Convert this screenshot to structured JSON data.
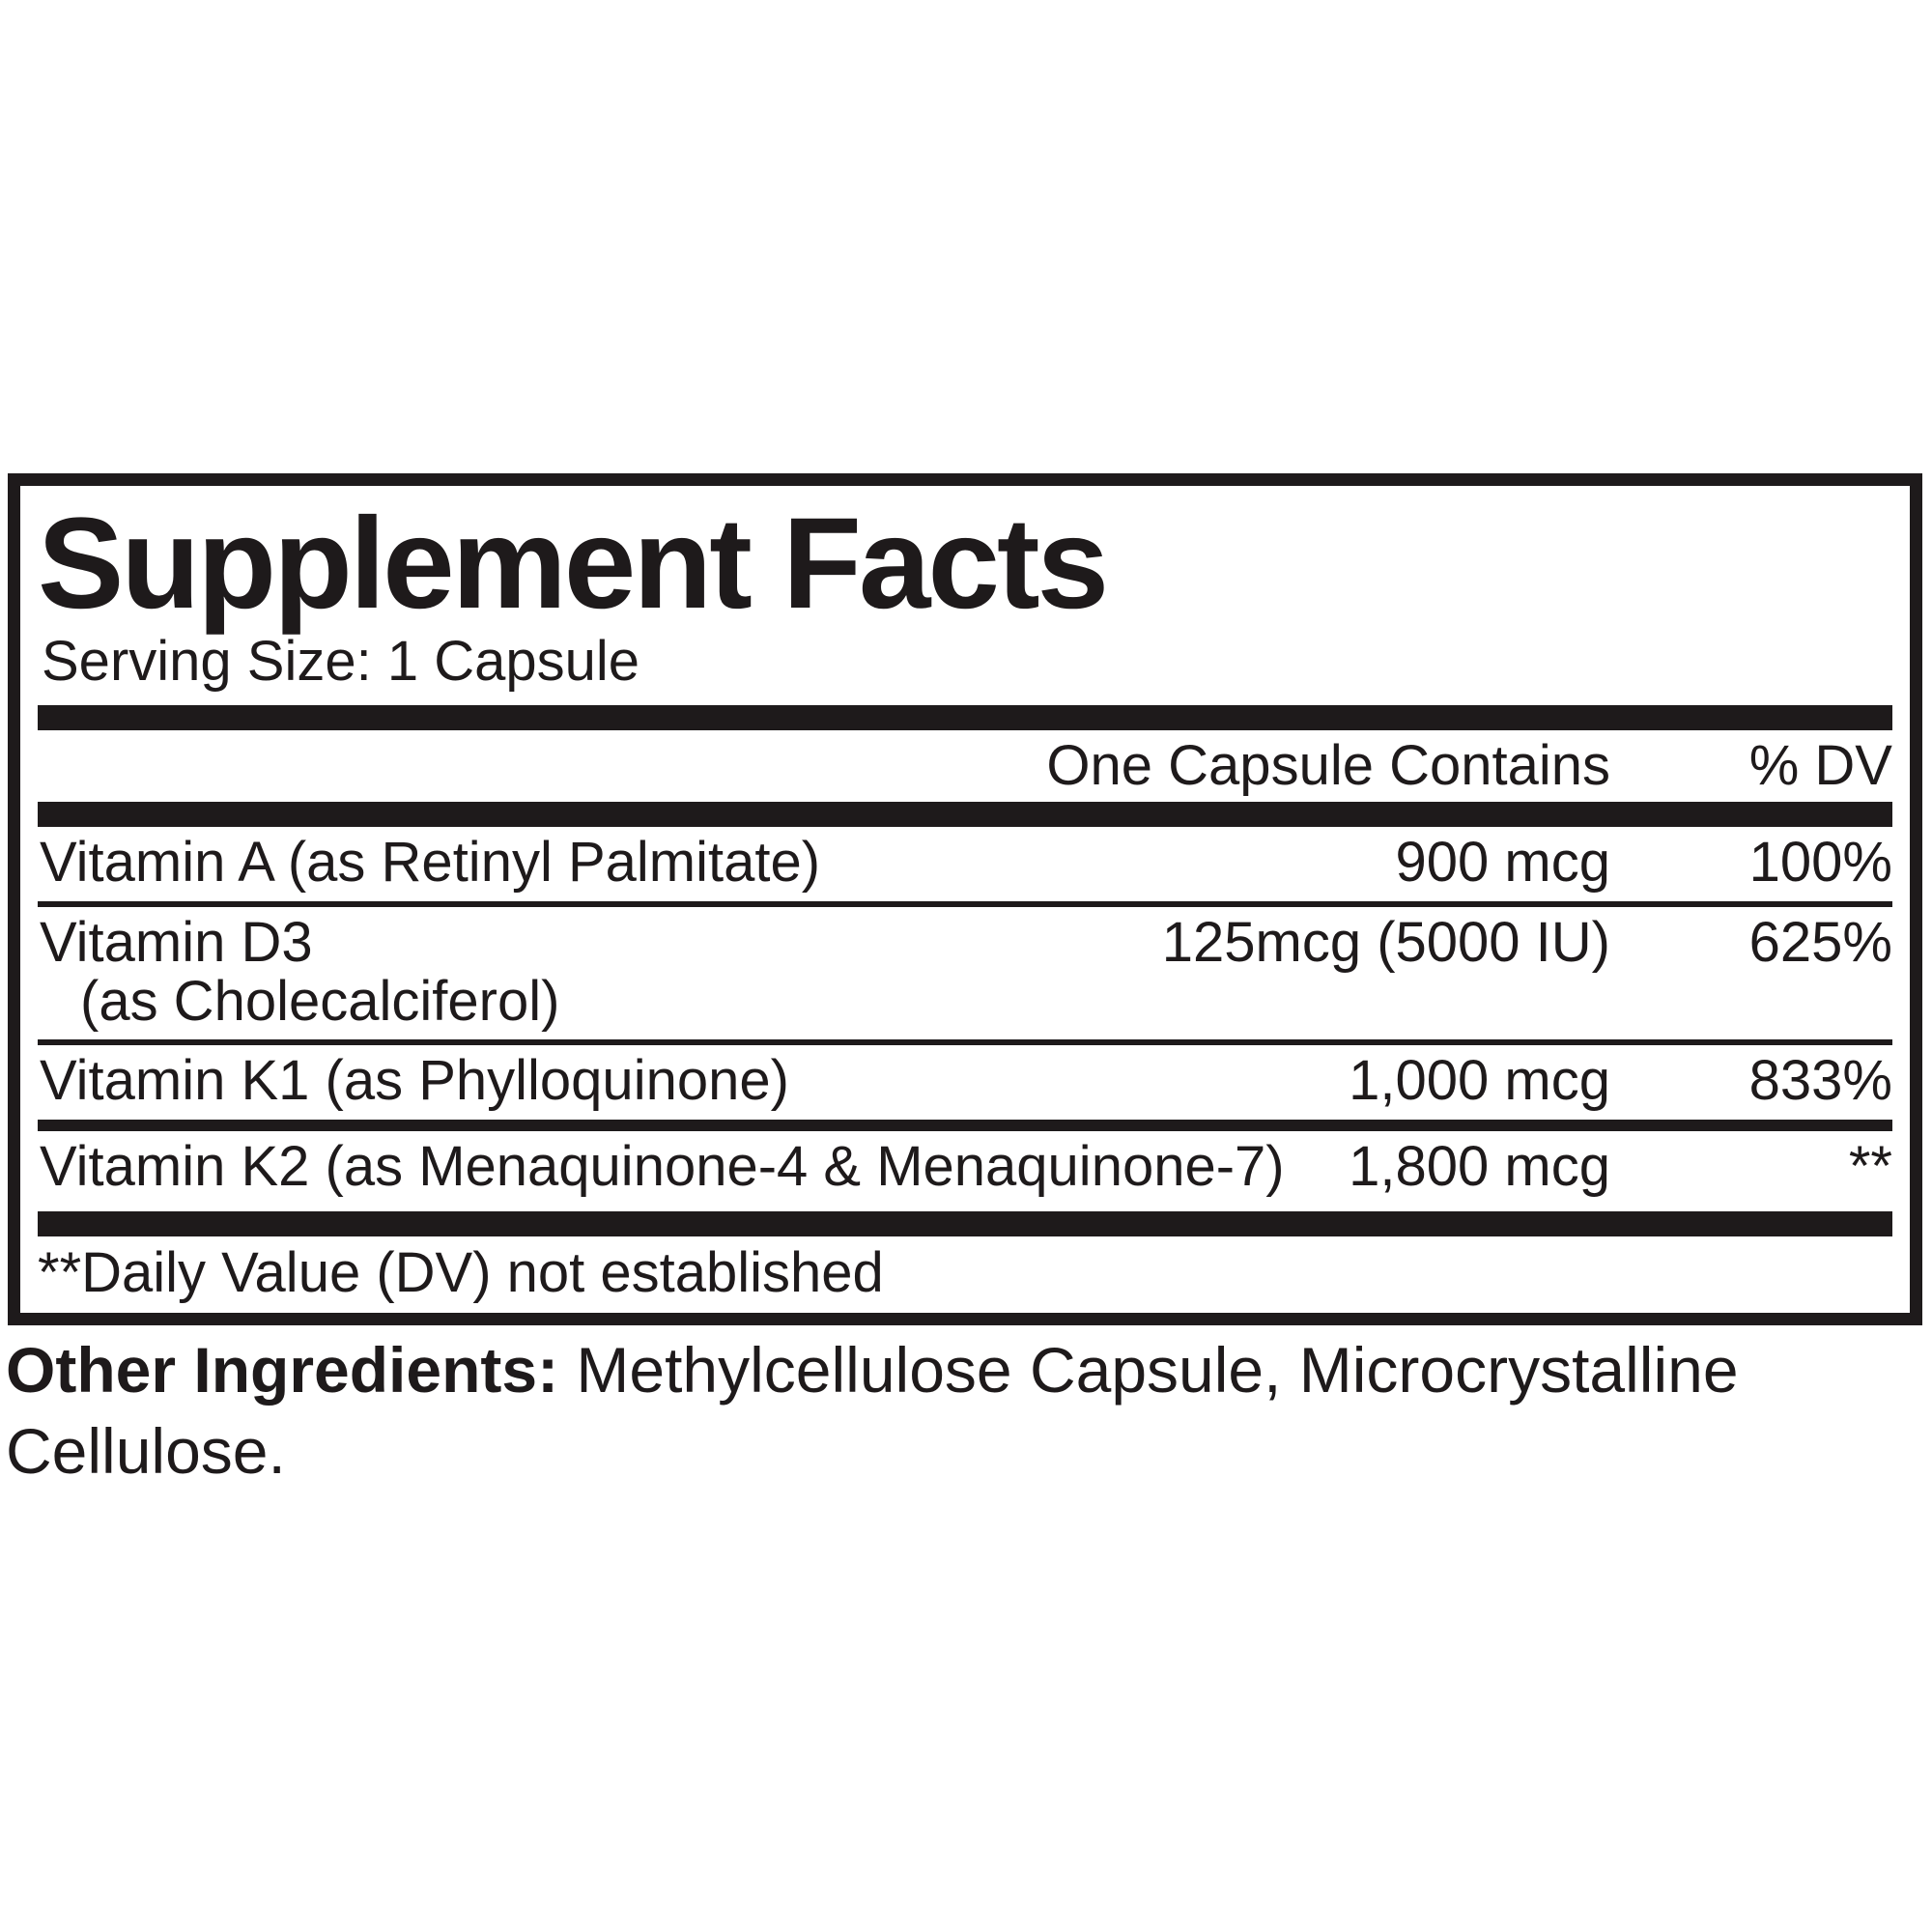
{
  "panel": {
    "title": "Supplement Facts",
    "serving_size": "Serving Size: 1 Capsule",
    "header": {
      "contains": "One Capsule Contains",
      "dv": "% DV"
    },
    "rows": [
      {
        "name": "Vitamin A (as Retinyl Palmitate)",
        "amount": "900 mcg",
        "dv": "100%"
      },
      {
        "name": "Vitamin D3",
        "name2": "(as Cholecalciferol)",
        "amount": "125mcg (5000 IU)",
        "dv": "625%"
      },
      {
        "name": "Vitamin K1 (as Phylloquinone)",
        "amount": "1,000 mcg",
        "dv": "833%"
      },
      {
        "name": "Vitamin K2 (as Menaquinone-4 & Menaquinone-7)",
        "amount": "1,800 mcg",
        "dv": "**"
      }
    ],
    "footnote": "**Daily Value (DV) not established"
  },
  "other_ingredients": {
    "label": "Other Ingredients:",
    "text": "Methylcellulose Capsule, Microcrystalline Cellulose."
  },
  "colors": {
    "ink": "#1e1a1b",
    "background": "#ffffff"
  }
}
